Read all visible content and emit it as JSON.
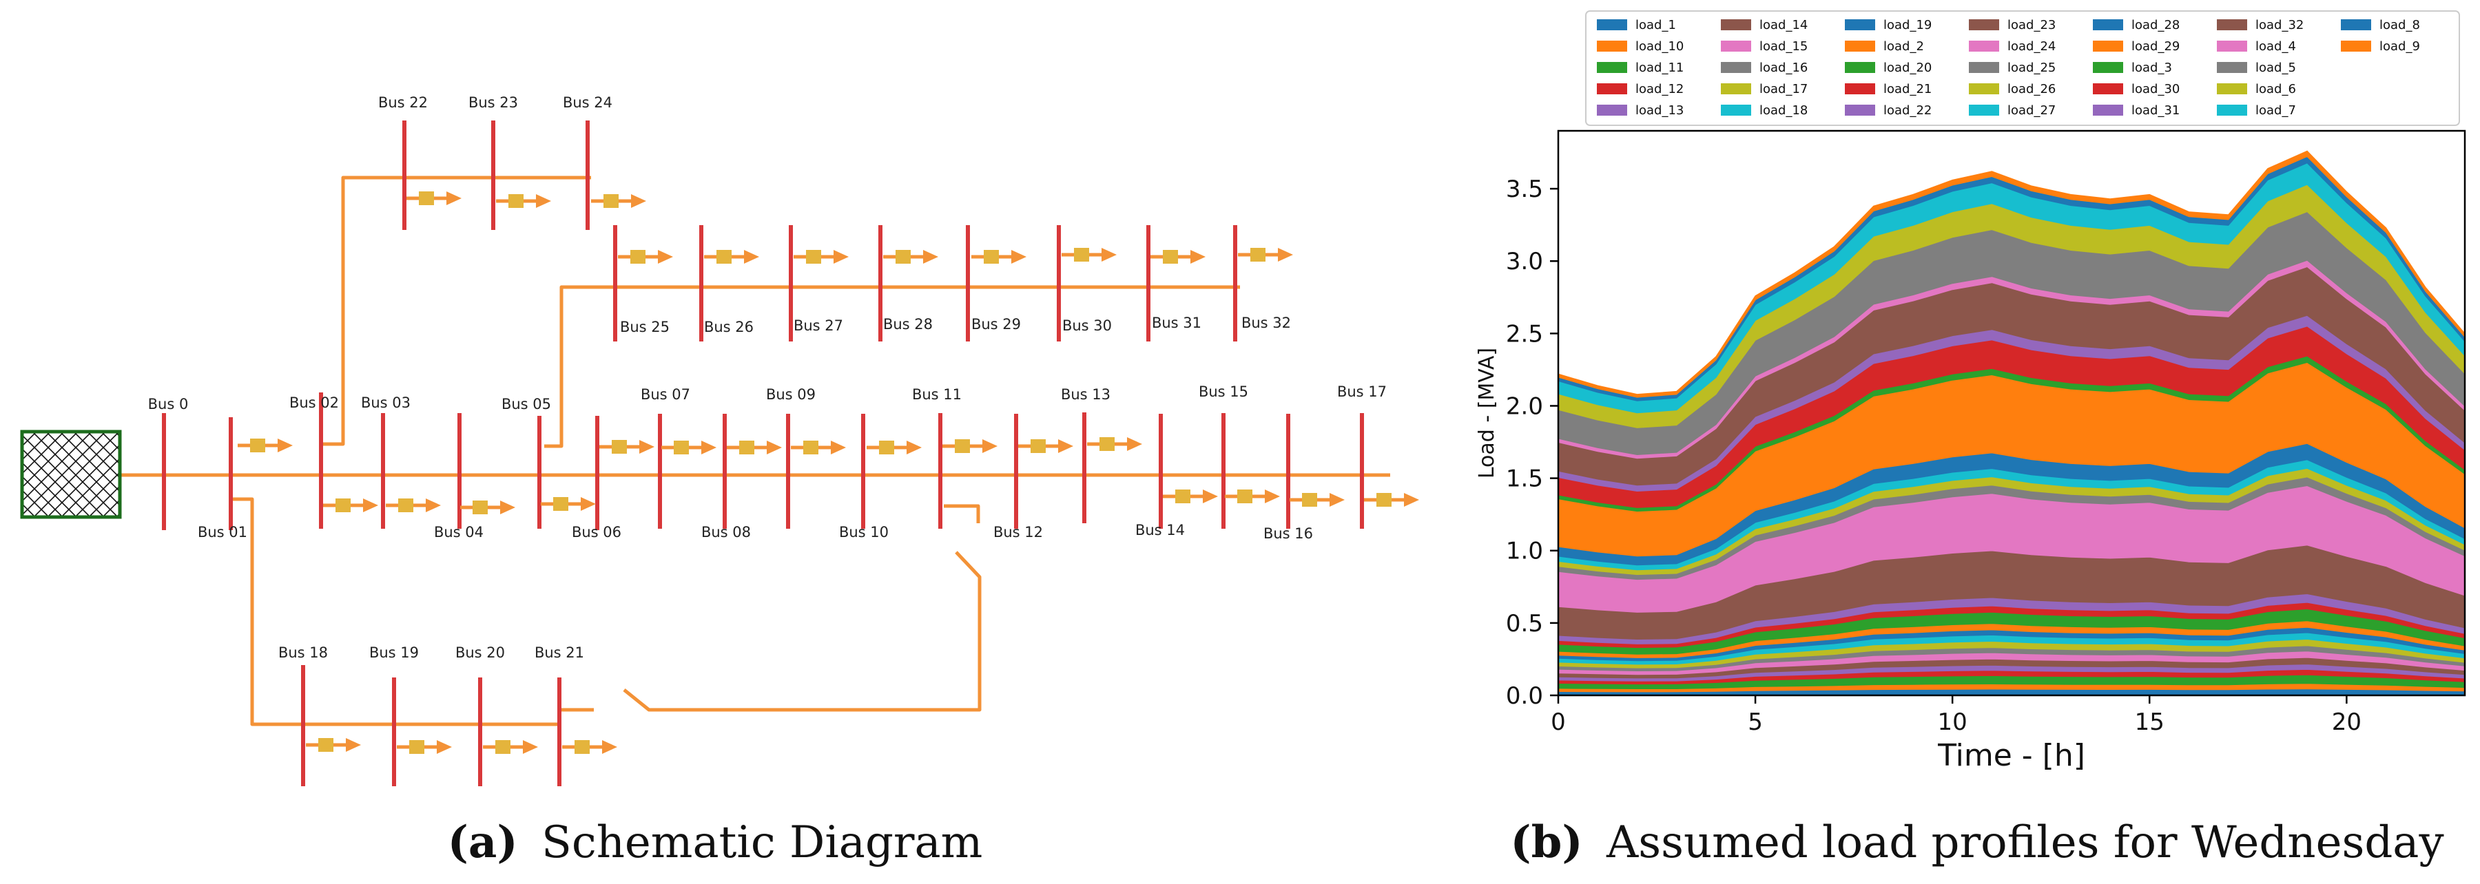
{
  "schematic": {
    "caption_letter": "(a)",
    "caption_text": "Schematic Diagram",
    "buses": [
      "Bus 0",
      "Bus 01",
      "Bus 02",
      "Bus 03",
      "Bus 04",
      "Bus 05",
      "Bus 06",
      "Bus 07",
      "Bus 08",
      "Bus 09",
      "Bus 10",
      "Bus 11",
      "Bus 12",
      "Bus 13",
      "Bus 14",
      "Bus 15",
      "Bus 16",
      "Bus 17",
      "Bus 18",
      "Bus 19",
      "Bus 20",
      "Bus 21",
      "Bus 22",
      "Bus 23",
      "Bus 24",
      "Bus 25",
      "Bus 26",
      "Bus 27",
      "Bus 28",
      "Bus 29",
      "Bus 30",
      "Bus 31",
      "Bus 32"
    ],
    "colors": {
      "line": "#f39237",
      "bus": "#d8383a",
      "load": "#e4b43c",
      "grid_border": "#1d6d1d",
      "grid_fill": "#ffffff",
      "hatch": "#111111"
    }
  },
  "chart": {
    "caption_letter": "(b)",
    "caption_text": "Assumed load profiles for Wednesday"
  },
  "chart_data": {
    "type": "area",
    "title": "",
    "xlabel": "Time - [h]",
    "ylabel": "Load - [MVA]",
    "xlim": [
      0,
      23
    ],
    "ylim": [
      0,
      3.9
    ],
    "xticks": [
      0,
      5,
      10,
      15,
      20
    ],
    "yticks": [
      0.0,
      0.5,
      1.0,
      1.5,
      2.0,
      2.5,
      3.0,
      3.5
    ],
    "x": [
      0,
      1,
      2,
      3,
      4,
      5,
      6,
      7,
      8,
      9,
      10,
      11,
      12,
      13,
      14,
      15,
      16,
      17,
      18,
      19,
      20,
      21,
      22,
      23
    ],
    "total": [
      2.22,
      2.14,
      2.08,
      2.1,
      2.34,
      2.76,
      2.92,
      3.1,
      3.38,
      3.46,
      3.56,
      3.62,
      3.52,
      3.46,
      3.43,
      3.46,
      3.34,
      3.32,
      3.64,
      3.76,
      3.48,
      3.23,
      2.82,
      2.5
    ],
    "legend": [
      "load_1",
      "load_10",
      "load_11",
      "load_12",
      "load_13",
      "load_14",
      "load_15",
      "load_16",
      "load_17",
      "load_18",
      "load_19",
      "load_2",
      "load_20",
      "load_21",
      "load_22",
      "load_23",
      "load_24",
      "load_25",
      "load_26",
      "load_27",
      "load_28",
      "load_29",
      "load_3",
      "load_30",
      "load_31",
      "load_32",
      "load_4",
      "load_5",
      "load_6",
      "load_7",
      "load_8",
      "load_9"
    ],
    "series": [
      {
        "name": "load_1",
        "color": "#1f77b4",
        "share": 0.012
      },
      {
        "name": "load_10",
        "color": "#ff7f0e",
        "share": 0.01
      },
      {
        "name": "load_11",
        "color": "#2ca02c",
        "share": 0.016
      },
      {
        "name": "load_12",
        "color": "#d62728",
        "share": 0.01
      },
      {
        "name": "load_13",
        "color": "#9467bd",
        "share": 0.01
      },
      {
        "name": "load_14",
        "color": "#8c564b",
        "share": 0.012
      },
      {
        "name": "load_15",
        "color": "#e377c2",
        "share": 0.012
      },
      {
        "name": "load_16",
        "color": "#7f7f7f",
        "share": 0.01
      },
      {
        "name": "load_17",
        "color": "#bcbd22",
        "share": 0.012
      },
      {
        "name": "load_18",
        "color": "#17becf",
        "share": 0.012
      },
      {
        "name": "load_19",
        "color": "#1f77b4",
        "share": 0.01
      },
      {
        "name": "load_2",
        "color": "#ff7f0e",
        "share": 0.012
      },
      {
        "name": "load_20",
        "color": "#2ca02c",
        "share": 0.022
      },
      {
        "name": "load_21",
        "color": "#d62728",
        "share": 0.012
      },
      {
        "name": "load_22",
        "color": "#9467bd",
        "share": 0.016
      },
      {
        "name": "load_23",
        "color": "#8c564b",
        "share": 0.09
      },
      {
        "name": "load_24",
        "color": "#e377c2",
        "share": 0.11
      },
      {
        "name": "load_25",
        "color": "#7f7f7f",
        "share": 0.016
      },
      {
        "name": "load_26",
        "color": "#bcbd22",
        "share": 0.016
      },
      {
        "name": "load_27",
        "color": "#17becf",
        "share": 0.016
      },
      {
        "name": "load_28",
        "color": "#1f77b4",
        "share": 0.03
      },
      {
        "name": "load_29",
        "color": "#ff7f0e",
        "share": 0.15
      },
      {
        "name": "load_3",
        "color": "#2ca02c",
        "share": 0.012
      },
      {
        "name": "load_30",
        "color": "#d62728",
        "share": 0.055
      },
      {
        "name": "load_31",
        "color": "#9467bd",
        "share": 0.02
      },
      {
        "name": "load_32",
        "color": "#8c564b",
        "share": 0.09
      },
      {
        "name": "load_4",
        "color": "#e377c2",
        "share": 0.012
      },
      {
        "name": "load_5",
        "color": "#7f7f7f",
        "share": 0.09
      },
      {
        "name": "load_6",
        "color": "#bcbd22",
        "share": 0.05
      },
      {
        "name": "load_7",
        "color": "#17becf",
        "share": 0.04
      },
      {
        "name": "load_8",
        "color": "#1f77b4",
        "share": 0.012
      },
      {
        "name": "load_9",
        "color": "#ff7f0e",
        "share": 0.01
      }
    ]
  }
}
